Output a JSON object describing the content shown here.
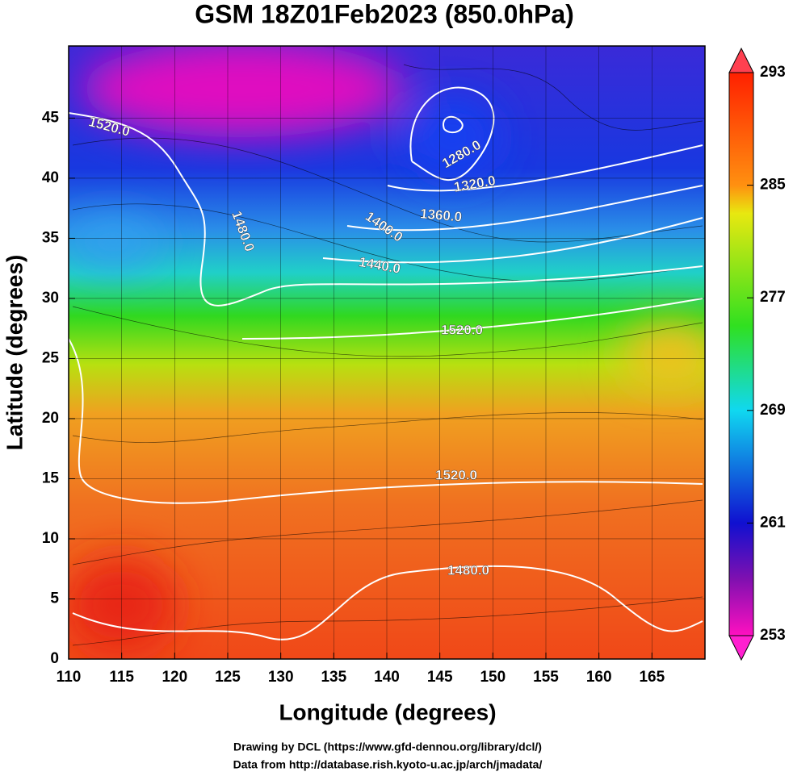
{
  "chart_data": {
    "type": "map",
    "title": "GSM 18Z01Feb2023 (850.0hPa)",
    "xlabel": "Longitude (degrees)",
    "ylabel": "Latitude  (degrees)",
    "xlim": [
      110,
      170
    ],
    "ylim": [
      0,
      51
    ],
    "xticks": [
      110,
      115,
      120,
      125,
      130,
      135,
      140,
      145,
      150,
      155,
      160,
      165
    ],
    "yticks": [
      0,
      5,
      10,
      15,
      20,
      25,
      30,
      35,
      40,
      45
    ],
    "grid": true,
    "colorbar": {
      "lim": [
        253,
        293
      ],
      "ticks": [
        253,
        261,
        269,
        277,
        285,
        293
      ]
    },
    "contour_labels": [
      "1520.0",
      "1280.0",
      "1320.0",
      "1360.0",
      "1400.0",
      "1440.0",
      "1480.0",
      "1520.0",
      "1520.0",
      "1480.0"
    ],
    "credits": [
      "Drawing by DCL (https://www.gfd-dennou.org/library/dcl/)",
      "Data from http://database.rish.kyoto-u.ac.jp/arch/jmadata/"
    ]
  }
}
